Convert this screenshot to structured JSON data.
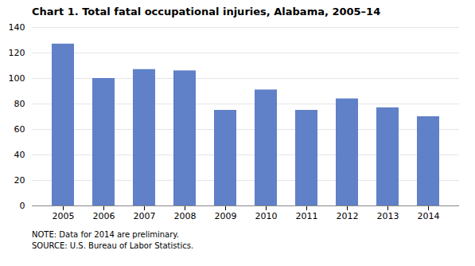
{
  "chart_data": {
    "type": "bar",
    "title": "Chart 1. Total fatal occupational injuries, Alabama, 2005–14",
    "categories": [
      "2005",
      "2006",
      "2007",
      "2008",
      "2009",
      "2010",
      "2011",
      "2012",
      "2013",
      "2014"
    ],
    "values": [
      127,
      100,
      107,
      106,
      75,
      91,
      75,
      84,
      77,
      70
    ],
    "color": "#6080C8",
    "ylim": [
      0,
      140
    ],
    "yticks": [
      0,
      20,
      40,
      60,
      80,
      100,
      120,
      140
    ],
    "grid": true,
    "annotations": [
      "NOTE: Data for 2014 are preliminary.",
      "SOURCE: U.S. Bureau of Labor Statistics."
    ]
  }
}
